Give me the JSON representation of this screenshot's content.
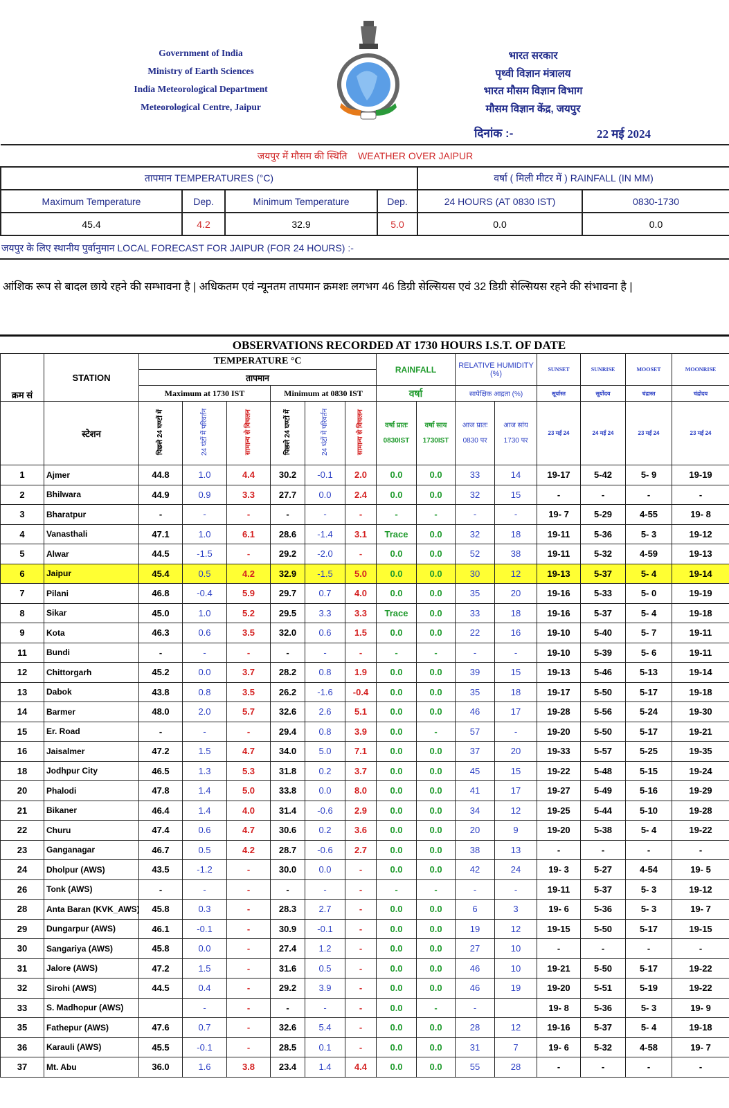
{
  "header": {
    "en_lines": [
      "Government of India",
      "Ministry of Earth Sciences",
      "India Meteorological Department",
      "Meteorological Centre, Jaipur"
    ],
    "hi_lines": [
      "भारत सरकार",
      "पृथ्वी विज्ञान मंत्रालय",
      "भारत मौसम विज्ञान विभाग",
      "मौसम विज्ञान केंद्र, जयपुर"
    ],
    "date_label": "दिनांक :-",
    "date_value": "22 मई 2024",
    "logo": "imd-emblem"
  },
  "summary": {
    "title_hi": "जयपुर में मौसम की स्थिति",
    "title_en": "WEATHER OVER JAIPUR",
    "temp_group": "तापमान TEMPERATURES (°C)",
    "rain_group": "वर्षा ( मिली मीटर में ) RAINFALL (IN  MM)",
    "cols": [
      "Maximum Temperature",
      "Dep.",
      "Minimum Temperature",
      "Dep.",
      "24 HOURS  (AT 0830 IST)",
      "0830-1730"
    ],
    "values": [
      "45.4",
      "4.2",
      "32.9",
      "5.0",
      "0.0",
      "0.0"
    ]
  },
  "forecast": {
    "heading": "जयपुर के लिए स्थानीय पुर्वानुमान LOCAL FORECAST FOR JAIPUR (FOR 24 HOURS) :-",
    "text": "आंशिक रूप से बादल छाये रहने की सम्भावना है | अधिकतम एवं न्यूनतम तापमान क्रमशः लगभग 46  डिग्री सेल्सियस एवं  32 डिग्री सेल्सियस रहने की संभावना है |"
  },
  "obs": {
    "title": "OBSERVATIONS RECORDED AT 1730 HOURS I.S.T. OF DATE",
    "h_sno": "क्रम सं",
    "h_station": "STATION",
    "h_station_hi": "स्टेशन",
    "h_temp": "TEMPERATURE °C",
    "h_temp_hi": "तापमान",
    "h_max": "Maximum at 1730 IST",
    "h_min": "Minimum at 0830 IST",
    "h_v1": "पिछले 24 घण्टों में",
    "h_v2": "24 घंटों में परिवर्तन",
    "h_v3": "सामान्य से विचलन",
    "h_rain": "RAINFALL",
    "h_rain_hi": "वर्षा",
    "h_r1a": "वर्षा प्रातः",
    "h_r1b": "0830IST",
    "h_r2a": "वर्षा साय",
    "h_r2b": "1730IST",
    "h_rh": "RELATIVE HUMIDITY (%)",
    "h_rh_hi": "सापेक्षिक आद्रता (%)",
    "h_rh1a": "आज प्रातः",
    "h_rh1b": "0830  पर",
    "h_rh2a": "आज सांय",
    "h_rh2b": "1730  पर",
    "h_sunset": "SUNSET",
    "h_sunrise": "SUNRISE",
    "h_moonset": "MOOSET",
    "h_moonrise": "MOONRISE",
    "h_sunset_hi": "सूर्यास्त",
    "h_sunrise_hi": "सूर्योदय",
    "h_moonset_hi": "चंद्रास्त",
    "h_moonrise_hi": "चंद्रोदय",
    "d_sunset": "23 मई 24",
    "d_sunrise": "24 मई 24",
    "d_moonset": "23 मई 24",
    "d_moonrise": "23 मई 24",
    "highlight_color": "#ffff33",
    "highlight_station": "Jaipur",
    "rows": [
      [
        "1",
        "Ajmer",
        "44.8",
        "1.0",
        "4.4",
        "30.2",
        "-0.1",
        "2.0",
        "0.0",
        "0.0",
        "33",
        "14",
        "19-17",
        "5-42",
        "5- 9",
        "19-19"
      ],
      [
        "2",
        "Bhilwara",
        "44.9",
        "0.9",
        "3.3",
        "27.7",
        "0.0",
        "2.4",
        "0.0",
        "0.0",
        "32",
        "15",
        "-",
        "-",
        "-",
        "-"
      ],
      [
        "3",
        "Bharatpur",
        "-",
        "-",
        "-",
        "-",
        "-",
        "-",
        "-",
        "-",
        "-",
        "-",
        "19- 7",
        "5-29",
        "4-55",
        "19- 8"
      ],
      [
        "4",
        "Vanasthali",
        "47.1",
        "1.0",
        "6.1",
        "28.6",
        "-1.4",
        "3.1",
        "Trace",
        "0.0",
        "32",
        "18",
        "19-11",
        "5-36",
        "5- 3",
        "19-12"
      ],
      [
        "5",
        "Alwar",
        "44.5",
        "-1.5",
        "-",
        "29.2",
        "-2.0",
        "-",
        "0.0",
        "0.0",
        "52",
        "38",
        "19-11",
        "5-32",
        "4-59",
        "19-13"
      ],
      [
        "6",
        "Jaipur",
        "45.4",
        "0.5",
        "4.2",
        "32.9",
        "-1.5",
        "5.0",
        "0.0",
        "0.0",
        "30",
        "12",
        "19-13",
        "5-37",
        "5- 4",
        "19-14"
      ],
      [
        "7",
        "Pilani",
        "46.8",
        "-0.4",
        "5.9",
        "29.7",
        "0.7",
        "4.0",
        "0.0",
        "0.0",
        "35",
        "20",
        "19-16",
        "5-33",
        "5- 0",
        "19-19"
      ],
      [
        "8",
        "Sikar",
        "45.0",
        "1.0",
        "5.2",
        "29.5",
        "3.3",
        "3.3",
        "Trace",
        "0.0",
        "33",
        "18",
        "19-16",
        "5-37",
        "5- 4",
        "19-18"
      ],
      [
        "9",
        "Kota",
        "46.3",
        "0.6",
        "3.5",
        "32.0",
        "0.6",
        "1.5",
        "0.0",
        "0.0",
        "22",
        "16",
        "19-10",
        "5-40",
        "5- 7",
        "19-11"
      ],
      [
        "11",
        "Bundi",
        "-",
        "-",
        "-",
        "-",
        "-",
        "-",
        "-",
        "-",
        "-",
        "-",
        "19-10",
        "5-39",
        "5- 6",
        "19-11"
      ],
      [
        "12",
        "Chittorgarh",
        "45.2",
        "0.0",
        "3.7",
        "28.2",
        "0.8",
        "1.9",
        "0.0",
        "0.0",
        "39",
        "15",
        "19-13",
        "5-46",
        "5-13",
        "19-14"
      ],
      [
        "13",
        "Dabok",
        "43.8",
        "0.8",
        "3.5",
        "26.2",
        "-1.6",
        "-0.4",
        "0.0",
        "0.0",
        "35",
        "18",
        "19-17",
        "5-50",
        "5-17",
        "19-18"
      ],
      [
        "14",
        "Barmer",
        "48.0",
        "2.0",
        "5.7",
        "32.6",
        "2.6",
        "5.1",
        "0.0",
        "0.0",
        "46",
        "17",
        "19-28",
        "5-56",
        "5-24",
        "19-30"
      ],
      [
        "15",
        "Er. Road",
        "-",
        "-",
        "-",
        "29.4",
        "0.8",
        "3.9",
        "0.0",
        "-",
        "57",
        "-",
        "19-20",
        "5-50",
        "5-17",
        "19-21"
      ],
      [
        "16",
        "Jaisalmer",
        "47.2",
        "1.5",
        "4.7",
        "34.0",
        "5.0",
        "7.1",
        "0.0",
        "0.0",
        "37",
        "20",
        "19-33",
        "5-57",
        "5-25",
        "19-35"
      ],
      [
        "18",
        "Jodhpur City",
        "46.5",
        "1.3",
        "5.3",
        "31.8",
        "0.2",
        "3.7",
        "0.0",
        "0.0",
        "45",
        "15",
        "19-22",
        "5-48",
        "5-15",
        "19-24"
      ],
      [
        "20",
        "Phalodi",
        "47.8",
        "1.4",
        "5.0",
        "33.8",
        "0.0",
        "8.0",
        "0.0",
        "0.0",
        "41",
        "17",
        "19-27",
        "5-49",
        "5-16",
        "19-29"
      ],
      [
        "21",
        "Bikaner",
        "46.4",
        "1.4",
        "4.0",
        "31.4",
        "-0.6",
        "2.9",
        "0.0",
        "0.0",
        "34",
        "12",
        "19-25",
        "5-44",
        "5-10",
        "19-28"
      ],
      [
        "22",
        "Churu",
        "47.4",
        "0.6",
        "4.7",
        "30.6",
        "0.2",
        "3.6",
        "0.0",
        "0.0",
        "20",
        "9",
        "19-20",
        "5-38",
        "5- 4",
        "19-22"
      ],
      [
        "23",
        "Ganganagar",
        "46.7",
        "0.5",
        "4.2",
        "28.7",
        "-0.6",
        "2.7",
        "0.0",
        "0.0",
        "38",
        "13",
        "-",
        "-",
        "-",
        "-"
      ],
      [
        "24",
        "Dholpur (AWS)",
        "43.5",
        "-1.2",
        "-",
        "30.0",
        "0.0",
        "-",
        "0.0",
        "0.0",
        "42",
        "24",
        "19- 3",
        "5-27",
        "4-54",
        "19- 5"
      ],
      [
        "26",
        "Tonk (AWS)",
        "-",
        "-",
        "-",
        "-",
        "-",
        "-",
        "-",
        "-",
        "-",
        "-",
        "19-11",
        "5-37",
        "5- 3",
        "19-12"
      ],
      [
        "28",
        "Anta Baran (KVK_AWS)",
        "45.8",
        "0.3",
        "-",
        "28.3",
        "2.7",
        "-",
        "0.0",
        "0.0",
        "6",
        "3",
        "19- 6",
        "5-36",
        "5- 3",
        "19- 7"
      ],
      [
        "29",
        "Dungarpur (AWS)",
        "46.1",
        "-0.1",
        "-",
        "30.9",
        "-0.1",
        "-",
        "0.0",
        "0.0",
        "19",
        "12",
        "19-15",
        "5-50",
        "5-17",
        "19-15"
      ],
      [
        "30",
        "Sangariya (AWS)",
        "45.8",
        "0.0",
        "-",
        "27.4",
        "1.2",
        "-",
        "0.0",
        "0.0",
        "27",
        "10",
        "-",
        "-",
        "-",
        "-"
      ],
      [
        "31",
        "Jalore (AWS)",
        "47.2",
        "1.5",
        "-",
        "31.6",
        "0.5",
        "-",
        "0.0",
        "0.0",
        "46",
        "10",
        "19-21",
        "5-50",
        "5-17",
        "19-22"
      ],
      [
        "32",
        "Sirohi (AWS)",
        "44.5",
        "0.4",
        "-",
        "29.2",
        "3.9",
        "-",
        "0.0",
        "0.0",
        "46",
        "19",
        "19-20",
        "5-51",
        "5-19",
        "19-22"
      ],
      [
        "33",
        "S. Madhopur (AWS)",
        "",
        "-",
        "-",
        "-",
        "-",
        "-",
        "0.0",
        "-",
        "-",
        "",
        "19- 8",
        "5-36",
        "5- 3",
        "19- 9"
      ],
      [
        "35",
        "Fathepur (AWS)",
        "47.6",
        "0.7",
        "-",
        "32.6",
        "5.4",
        "-",
        "0.0",
        "0.0",
        "28",
        "12",
        "19-16",
        "5-37",
        "5- 4",
        "19-18"
      ],
      [
        "36",
        "Karauli (AWS)",
        "45.5",
        "-0.1",
        "-",
        "28.5",
        "0.1",
        "-",
        "0.0",
        "0.0",
        "31",
        "7",
        "19- 6",
        "5-32",
        "4-58",
        "19- 7"
      ],
      [
        "37",
        "Mt. Abu",
        "36.0",
        "1.6",
        "3.8",
        "23.4",
        "1.4",
        "4.4",
        "0.0",
        "0.0",
        "55",
        "28",
        "-",
        "-",
        "-",
        "-"
      ]
    ]
  }
}
